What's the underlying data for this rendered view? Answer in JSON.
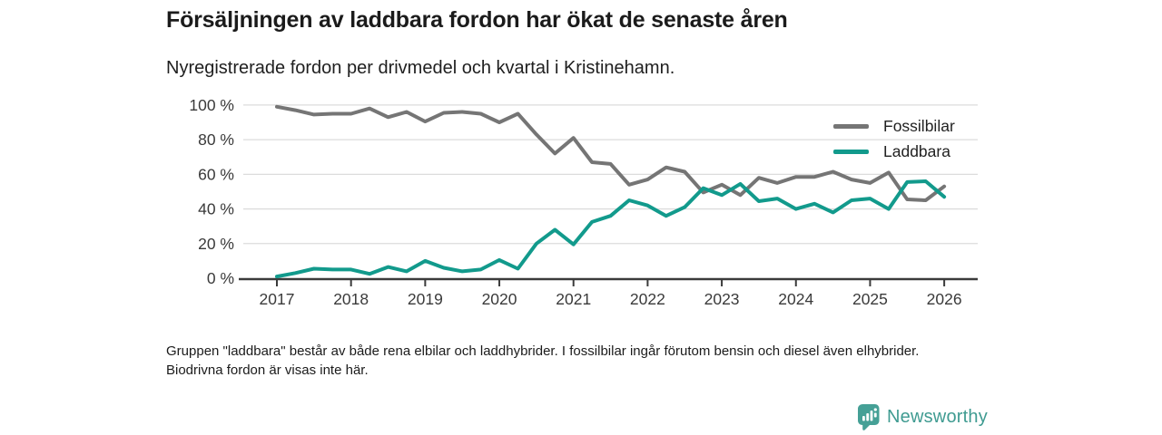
{
  "header": {
    "title": "Försäljningen av laddbara fordon har ökat de senaste åren",
    "subtitle": "Nyregistrerade fordon per drivmedel och kvartal i Kristinehamn."
  },
  "chart_data": {
    "type": "line",
    "title": "Nyregistrerade fordon per drivmedel och kvartal i Kristinehamn",
    "ylabel": "",
    "xlabel": "",
    "ylim": [
      0,
      100
    ],
    "grid": true,
    "legend_position": "top-right",
    "y_tick_labels": [
      "0 %",
      "20 %",
      "40 %",
      "60 %",
      "80 %",
      "100 %"
    ],
    "y_tick_values": [
      0,
      20,
      40,
      60,
      80,
      100
    ],
    "x_tick_labels": [
      "2017",
      "2018",
      "2019",
      "2020",
      "2021",
      "2022",
      "2023",
      "2024",
      "2025",
      "2026"
    ],
    "categories": [
      "2017Q1",
      "2017Q2",
      "2017Q3",
      "2017Q4",
      "2018Q1",
      "2018Q2",
      "2018Q3",
      "2018Q4",
      "2019Q1",
      "2019Q2",
      "2019Q3",
      "2019Q4",
      "2020Q1",
      "2020Q2",
      "2020Q3",
      "2020Q4",
      "2021Q1",
      "2021Q2",
      "2021Q3",
      "2021Q4",
      "2022Q1",
      "2022Q2",
      "2022Q3",
      "2022Q4",
      "2023Q1",
      "2023Q2",
      "2023Q3",
      "2023Q4",
      "2024Q1",
      "2024Q2",
      "2024Q3",
      "2024Q4",
      "2025Q1",
      "2025Q2",
      "2025Q3",
      "2025Q4",
      "2026Q1"
    ],
    "series": [
      {
        "name": "Fossilbilar",
        "color": "#757575",
        "values": [
          99,
          97,
          94.5,
          95,
          95,
          98,
          93,
          96,
          90.5,
          95.5,
          96,
          95,
          90,
          95,
          83,
          72,
          81,
          67,
          66,
          54,
          57,
          64,
          61.5,
          49.5,
          54,
          48,
          58,
          55,
          58.5,
          58.5,
          61.5,
          57,
          55,
          61,
          45.5,
          45,
          53
        ]
      },
      {
        "name": "Laddbara",
        "color": "#129a8c",
        "values": [
          1,
          3,
          5.5,
          5,
          5,
          2.5,
          6.5,
          4,
          10,
          6,
          4,
          5,
          10.5,
          5.5,
          20,
          28,
          19.5,
          32.5,
          36,
          45,
          42,
          36,
          41,
          52,
          48,
          54.5,
          44.5,
          46,
          40,
          43,
          38,
          45,
          46,
          40,
          55.5,
          56,
          47
        ]
      }
    ]
  },
  "footnote": {
    "text": "Gruppen \"laddbara\" består av både rena elbilar och laddhybrider. I fossilbilar ingår förutom bensin och diesel även elhybrider. Biodrivna fordon är visas inte här."
  },
  "branding": {
    "logo_text": "Newsworthy",
    "logo_color": "#3f9b91",
    "badge_color": "#45a096",
    "badge_icon": "bar-chart-speech-bubble-icon"
  }
}
